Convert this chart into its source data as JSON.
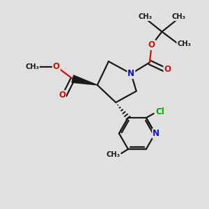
{
  "bg_color": "#e0e0e0",
  "bond_color": "#1a1a1a",
  "bond_width": 1.6,
  "atom_colors": {
    "N": "#1010cc",
    "O": "#cc1010",
    "Cl": "#00aa00",
    "C": "#1a1a1a"
  },
  "font_size_atom": 8.5,
  "font_size_small": 7.5,
  "figsize": [
    3.0,
    3.0
  ],
  "dpi": 100,
  "xlim": [
    0,
    10
  ],
  "ylim": [
    0,
    10
  ]
}
